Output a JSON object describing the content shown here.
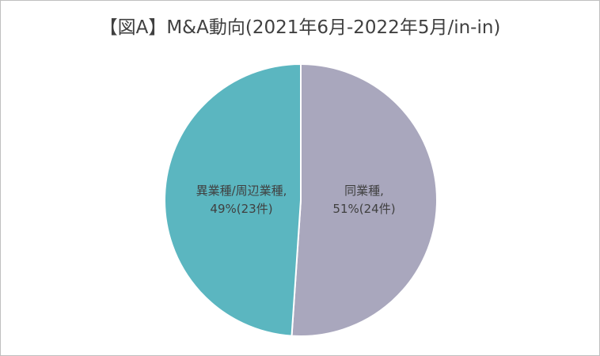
{
  "chart_data": {
    "type": "pie",
    "title": "【図A】M&A動向(2021年6月-2022年5月/in-in)",
    "slices": [
      {
        "name": "同業種",
        "percent_label": "51%(24件)",
        "value": 24,
        "percent": 51,
        "color": "#a9a7bd"
      },
      {
        "name": "異業種/周辺業種",
        "percent_label": "49%(23件)",
        "value": 23,
        "percent": 49,
        "color": "#5bb6c0"
      }
    ],
    "start_angle_deg": 0,
    "direction": "clockwise",
    "legend": "none"
  }
}
